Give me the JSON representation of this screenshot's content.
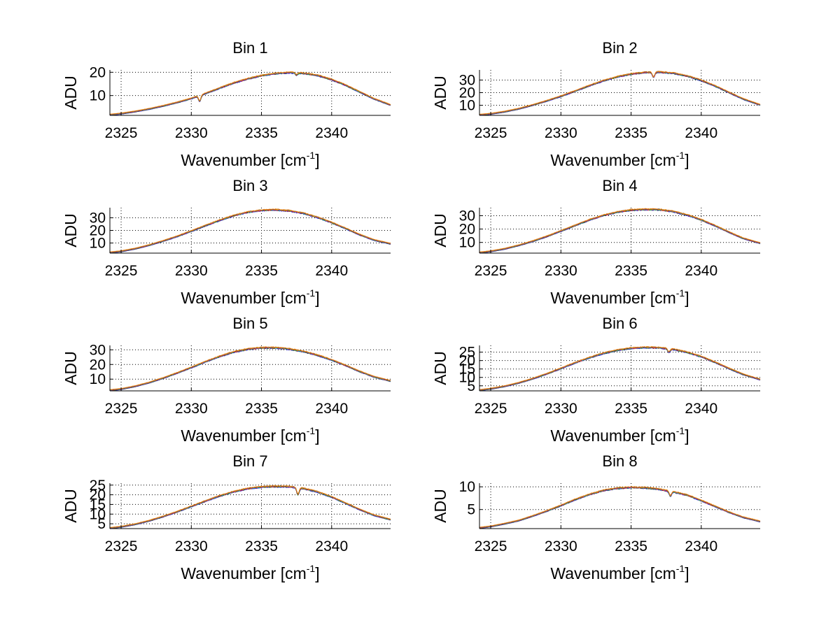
{
  "figure": {
    "x_label": "Wavenumber [cm",
    "x_label_sup": "-1",
    "x_label_end": "]",
    "y_label": "ADU"
  },
  "colors": {
    "series": [
      "#0000ff",
      "#008000",
      "#ff0000",
      "#00bfbf",
      "#bf00bf",
      "#bfbf00",
      "#404040",
      "#ff8000"
    ],
    "axes": "#000000",
    "grid": "#000000"
  },
  "chart_data": [
    {
      "type": "line",
      "title": "Bin 1",
      "xlabel": "Wavenumber [cm-1]",
      "ylabel": "ADU",
      "xlim": [
        2324.2,
        2344.2
      ],
      "ylim": [
        1.5,
        21
      ],
      "xticks": [
        2325,
        2330,
        2335,
        2340
      ],
      "yticks": [
        10,
        20
      ],
      "grid": true,
      "profile": {
        "x": [
          2324.2,
          2325,
          2326,
          2327,
          2328,
          2329,
          2330,
          2331,
          2332,
          2333,
          2334,
          2335,
          2336,
          2337,
          2338,
          2339,
          2340,
          2341,
          2342,
          2343,
          2344.2
        ],
        "y": [
          1.8,
          2.3,
          3.2,
          4.3,
          5.6,
          7.1,
          8.8,
          10.9,
          13.2,
          15.4,
          17.2,
          18.6,
          19.5,
          19.9,
          19.6,
          18.7,
          16.9,
          14.5,
          11.6,
          8.7,
          6.0
        ]
      },
      "dips": [
        {
          "x": 2330.6,
          "depth": 2.4
        },
        {
          "x": 2337.5,
          "depth": 0.8
        }
      ],
      "series_count": 8
    },
    {
      "type": "line",
      "title": "Bin 2",
      "xlabel": "Wavenumber [cm-1]",
      "ylabel": "ADU",
      "xlim": [
        2324.2,
        2344.2
      ],
      "ylim": [
        2,
        38
      ],
      "xticks": [
        2325,
        2330,
        2335,
        2340
      ],
      "yticks": [
        10,
        20,
        30
      ],
      "grid": true,
      "profile": {
        "x": [
          2324.2,
          2325,
          2326,
          2327,
          2328,
          2329,
          2330,
          2331,
          2332,
          2333,
          2334,
          2335,
          2336,
          2337,
          2338,
          2339,
          2340,
          2341,
          2342,
          2343,
          2344.2
        ],
        "y": [
          2.5,
          3.3,
          5.0,
          7.3,
          10.3,
          13.6,
          17.2,
          21.3,
          25.5,
          29.4,
          32.6,
          34.9,
          36.1,
          36.4,
          35.5,
          33.3,
          29.8,
          25.3,
          20.1,
          15.0,
          10.4
        ]
      },
      "dips": [
        {
          "x": 2336.6,
          "depth": 4.0
        }
      ],
      "series_count": 8
    },
    {
      "type": "line",
      "title": "Bin 3",
      "xlabel": "Wavenumber [cm-1]",
      "ylabel": "ADU",
      "xlim": [
        2324.2,
        2344.2
      ],
      "ylim": [
        2,
        38
      ],
      "xticks": [
        2325,
        2330,
        2335,
        2340
      ],
      "yticks": [
        10,
        20,
        30
      ],
      "grid": true,
      "profile": {
        "x": [
          2324.2,
          2325,
          2326,
          2327,
          2328,
          2329,
          2330,
          2331,
          2332,
          2333,
          2334,
          2335,
          2336,
          2337,
          2338,
          2339,
          2340,
          2341,
          2342,
          2343,
          2344.2
        ],
        "y": [
          2.6,
          3.5,
          5.6,
          8.4,
          11.7,
          15.4,
          19.5,
          23.8,
          28.0,
          31.7,
          34.5,
          36.0,
          36.4,
          35.6,
          33.6,
          30.4,
          26.3,
          21.6,
          16.7,
          12.5,
          9.5
        ]
      },
      "dips": [],
      "series_count": 8
    },
    {
      "type": "line",
      "title": "Bin 4",
      "xlabel": "Wavenumber [cm-1]",
      "ylabel": "ADU",
      "xlim": [
        2324.2,
        2344.2
      ],
      "ylim": [
        2,
        36
      ],
      "xticks": [
        2325,
        2330,
        2335,
        2340
      ],
      "yticks": [
        10,
        20,
        30
      ],
      "grid": true,
      "profile": {
        "x": [
          2324.2,
          2325,
          2326,
          2327,
          2328,
          2329,
          2330,
          2331,
          2332,
          2333,
          2334,
          2335,
          2336,
          2337,
          2338,
          2339,
          2340,
          2341,
          2342,
          2343,
          2344.2
        ],
        "y": [
          2.5,
          3.4,
          5.3,
          7.9,
          11.0,
          14.6,
          18.6,
          22.7,
          26.8,
          30.2,
          32.8,
          34.3,
          34.8,
          34.6,
          33.2,
          30.6,
          27.0,
          22.5,
          17.6,
          13.1,
          9.5
        ]
      },
      "dips": [],
      "series_count": 8
    },
    {
      "type": "line",
      "title": "Bin 5",
      "xlabel": "Wavenumber [cm-1]",
      "ylabel": "ADU",
      "xlim": [
        2324.2,
        2344.2
      ],
      "ylim": [
        2,
        33
      ],
      "xticks": [
        2325,
        2330,
        2335,
        2340
      ],
      "yticks": [
        10,
        20,
        30
      ],
      "grid": true,
      "profile": {
        "x": [
          2324.2,
          2325,
          2326,
          2327,
          2328,
          2329,
          2330,
          2331,
          2332,
          2333,
          2334,
          2335,
          2336,
          2337,
          2338,
          2339,
          2340,
          2341,
          2342,
          2343,
          2344.2
        ],
        "y": [
          2.5,
          3.3,
          5.2,
          7.7,
          10.8,
          14.3,
          18.0,
          21.9,
          25.5,
          28.5,
          30.5,
          31.5,
          31.5,
          30.6,
          28.9,
          26.4,
          23.2,
          19.4,
          15.3,
          11.7,
          8.8
        ]
      },
      "dips": [],
      "series_count": 8
    },
    {
      "type": "line",
      "title": "Bin 6",
      "xlabel": "Wavenumber [cm-1]",
      "ylabel": "ADU",
      "xlim": [
        2324.2,
        2344.2
      ],
      "ylim": [
        2,
        29
      ],
      "xticks": [
        2325,
        2330,
        2335,
        2340
      ],
      "yticks": [
        5,
        10,
        15,
        20,
        25
      ],
      "grid": true,
      "profile": {
        "x": [
          2324.2,
          2325,
          2326,
          2327,
          2328,
          2329,
          2330,
          2331,
          2332,
          2333,
          2334,
          2335,
          2336,
          2337,
          2338,
          2339,
          2340,
          2341,
          2342,
          2343,
          2344.2
        ],
        "y": [
          2.5,
          3.3,
          4.8,
          6.8,
          9.3,
          12.2,
          15.4,
          18.7,
          21.7,
          24.3,
          26.2,
          27.4,
          27.9,
          27.7,
          26.8,
          25.0,
          22.4,
          19.0,
          15.3,
          11.8,
          8.8
        ]
      },
      "dips": [
        {
          "x": 2337.7,
          "depth": 2.0
        }
      ],
      "series_count": 8
    },
    {
      "type": "line",
      "title": "Bin 7",
      "xlabel": "Wavenumber [cm-1]",
      "ylabel": "ADU",
      "xlim": [
        2324.2,
        2344.2
      ],
      "ylim": [
        2.5,
        26
      ],
      "xticks": [
        2325,
        2330,
        2335,
        2340
      ],
      "yticks": [
        5,
        10,
        15,
        20,
        25
      ],
      "grid": true,
      "profile": {
        "x": [
          2324.2,
          2325,
          2326,
          2327,
          2328,
          2329,
          2330,
          2331,
          2332,
          2333,
          2334,
          2335,
          2336,
          2337,
          2338,
          2339,
          2340,
          2341,
          2342,
          2343,
          2344.2
        ],
        "y": [
          2.8,
          3.5,
          4.8,
          6.6,
          8.8,
          11.3,
          14.0,
          16.8,
          19.4,
          21.6,
          23.2,
          24.1,
          24.4,
          24.2,
          23.3,
          21.5,
          18.9,
          15.7,
          12.4,
          9.5,
          7.2
        ]
      },
      "dips": [
        {
          "x": 2337.6,
          "depth": 3.5
        }
      ],
      "series_count": 8
    },
    {
      "type": "line",
      "title": "Bin 8",
      "xlabel": "Wavenumber [cm-1]",
      "ylabel": "ADU",
      "xlim": [
        2324.2,
        2344.2
      ],
      "ylim": [
        0.8,
        10.8
      ],
      "xticks": [
        2325,
        2330,
        2335,
        2340
      ],
      "yticks": [
        5,
        10
      ],
      "grid": true,
      "profile": {
        "x": [
          2324.2,
          2325,
          2326,
          2327,
          2328,
          2329,
          2330,
          2331,
          2332,
          2333,
          2334,
          2335,
          2336,
          2337,
          2338,
          2339,
          2340,
          2341,
          2342,
          2343,
          2344.2
        ],
        "y": [
          1.0,
          1.3,
          1.9,
          2.6,
          3.6,
          4.7,
          5.9,
          7.2,
          8.3,
          9.2,
          9.7,
          9.9,
          9.8,
          9.5,
          8.9,
          8.2,
          7.0,
          5.7,
          4.4,
          3.3,
          2.4
        ]
      },
      "dips": [
        {
          "x": 2337.8,
          "depth": 1.0
        }
      ],
      "series_count": 8
    }
  ]
}
